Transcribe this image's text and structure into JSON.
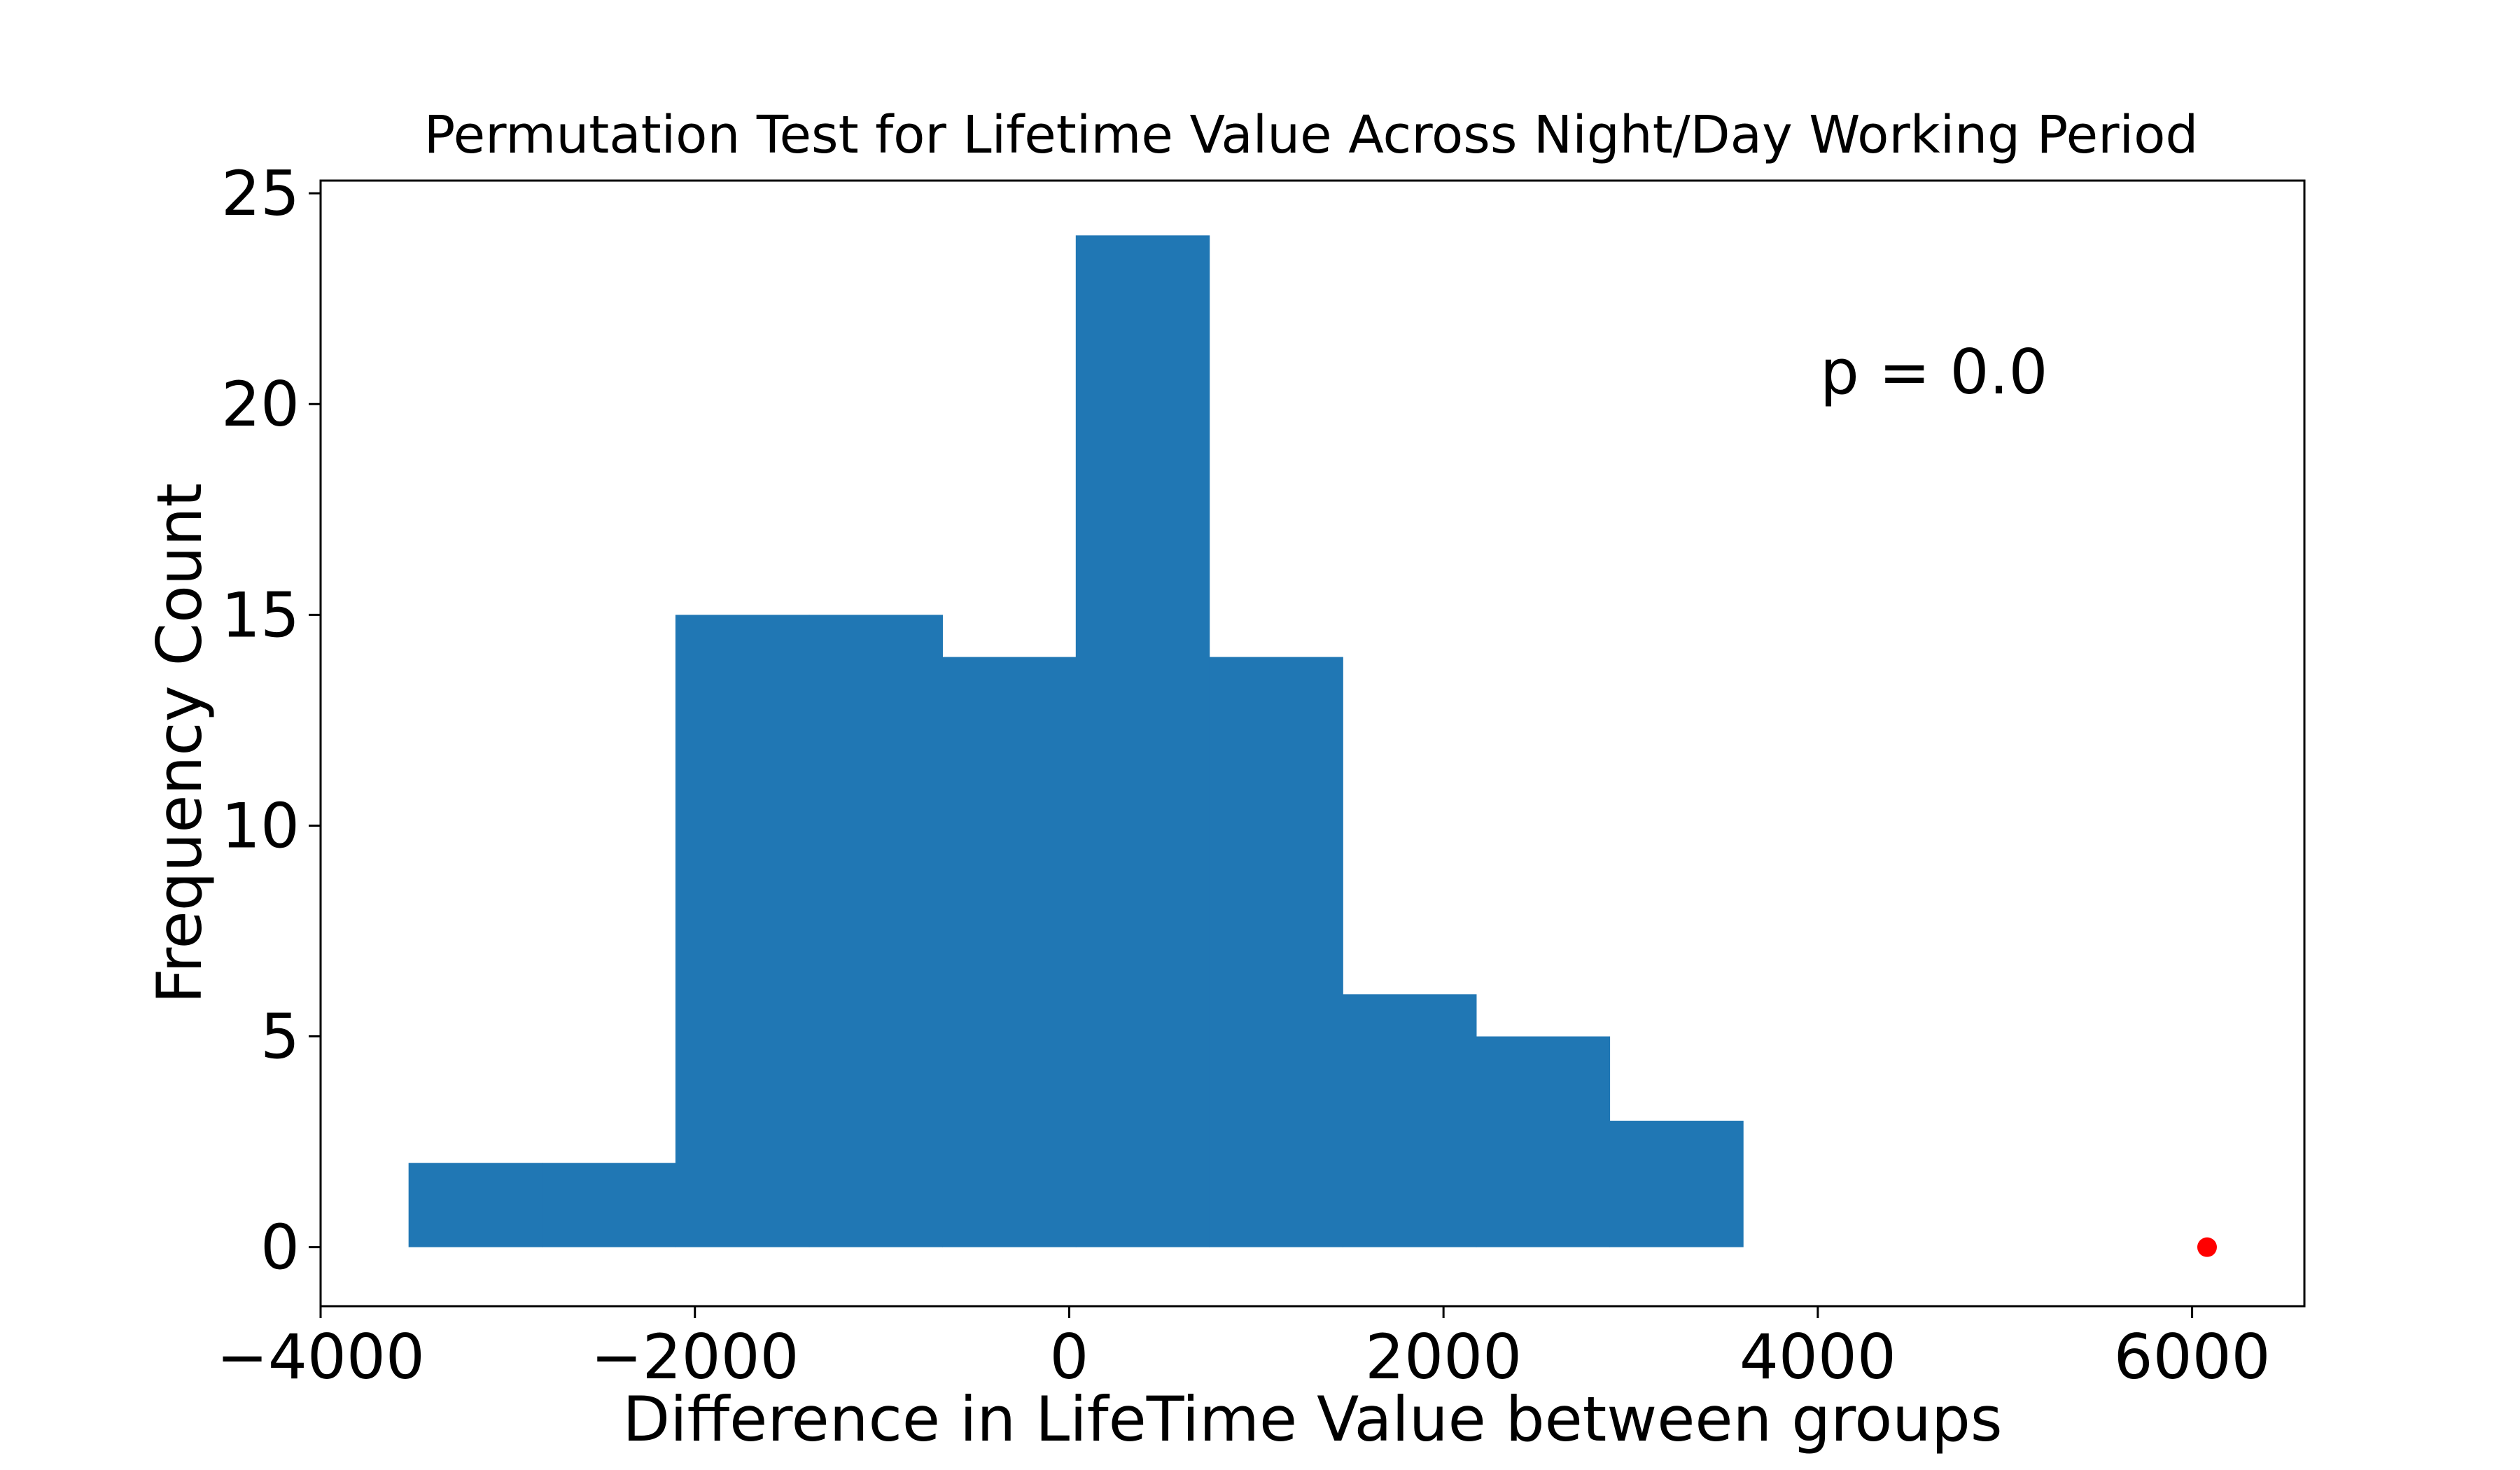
{
  "chart_data": {
    "type": "bar",
    "subtype": "histogram",
    "title": "Permutation Test for Lifetime Value Across Night/Day Working Period",
    "xlabel": "Difference in LifeTime Value between groups",
    "ylabel": "Frequency Count",
    "xlim": [
      -4000,
      6600
    ],
    "ylim": [
      -1.4,
      25.3
    ],
    "xticks": [
      -4000,
      -2000,
      0,
      2000,
      4000,
      6000
    ],
    "xtick_labels": [
      "−4000",
      "−2000",
      "0",
      "2000",
      "4000",
      "6000"
    ],
    "yticks": [
      0,
      5,
      10,
      15,
      20,
      25
    ],
    "ytick_labels": [
      "0",
      "5",
      "10",
      "15",
      "20",
      "25"
    ],
    "bin_edges": [
      -3530,
      -2817,
      -2104,
      -1391,
      -678,
      35,
      748,
      1461,
      2174,
      2887,
      3600
    ],
    "counts": [
      2,
      2,
      15,
      15,
      14,
      24,
      14,
      6,
      5,
      3
    ],
    "bar_color": "#2077b4",
    "observed_point": {
      "x": 6080,
      "y": 0,
      "color": "#ff0000"
    },
    "annotation": "p = 0.0",
    "grid": false,
    "legend": "none"
  }
}
